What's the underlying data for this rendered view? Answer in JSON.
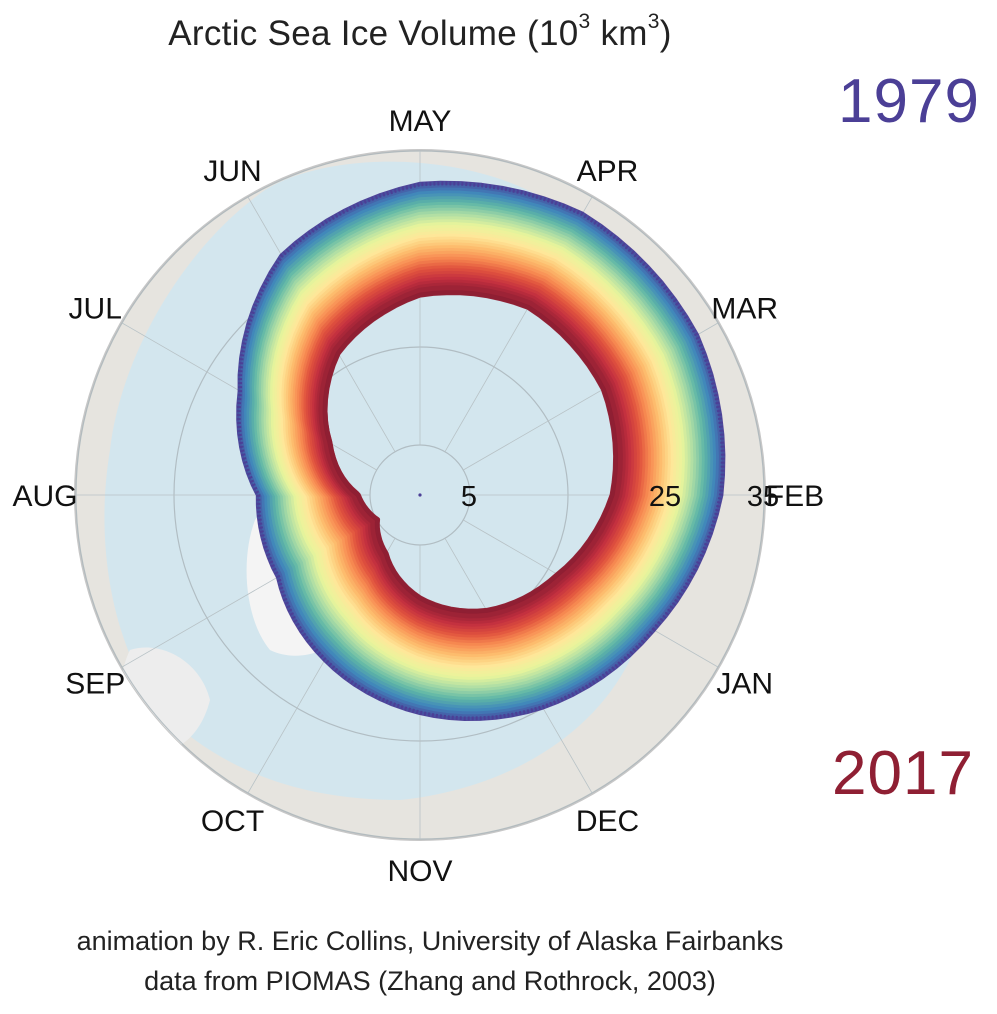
{
  "title": {
    "main": "Arctic Sea Ice Volume (10",
    "exponent": "3",
    "unit": "km",
    "unit_exponent": "3",
    "close": ")"
  },
  "legend": {
    "start_year": "1979",
    "end_year": "2017",
    "start_color": "#4b3f96",
    "end_color": "#8f1f33"
  },
  "credits": {
    "line1": "animation by R. Eric Collins, University of Alaska Fairbanks",
    "line2": "data from PIOMAS (Zhang and Rothrock, 2003)"
  },
  "chart_data": {
    "type": "line",
    "subtype": "polar-spiral",
    "title": "Arctic Sea Ice Volume (10^3 km^3)",
    "angular_axis": {
      "labels": [
        "JAN",
        "FEB",
        "MAR",
        "APR",
        "MAY",
        "JUN",
        "JUL",
        "AUG",
        "SEP",
        "OCT",
        "NOV",
        "DEC"
      ],
      "direction": "counterclockwise"
    },
    "radial_axis": {
      "tick_labels": [
        "5",
        "25",
        "35"
      ],
      "ticks": [
        5,
        25,
        35
      ],
      "range": [
        0,
        35
      ]
    },
    "background": "polar map of the Arctic",
    "color_scale": {
      "start": "1979",
      "end": "2017"
    },
    "series": [
      {
        "name": "1979",
        "values": [
          27.5,
          30.7,
          32.6,
          33.1,
          31.7,
          28.2,
          21.2,
          16.5,
          16.7,
          19.4,
          22.2,
          25.0
        ]
      },
      {
        "name": "2017",
        "values": [
          16.2,
          19.6,
          21.6,
          22.1,
          20.4,
          16.7,
          10.6,
          6.3,
          5.0,
          6.9,
          10.5,
          13.6
        ]
      }
    ]
  }
}
